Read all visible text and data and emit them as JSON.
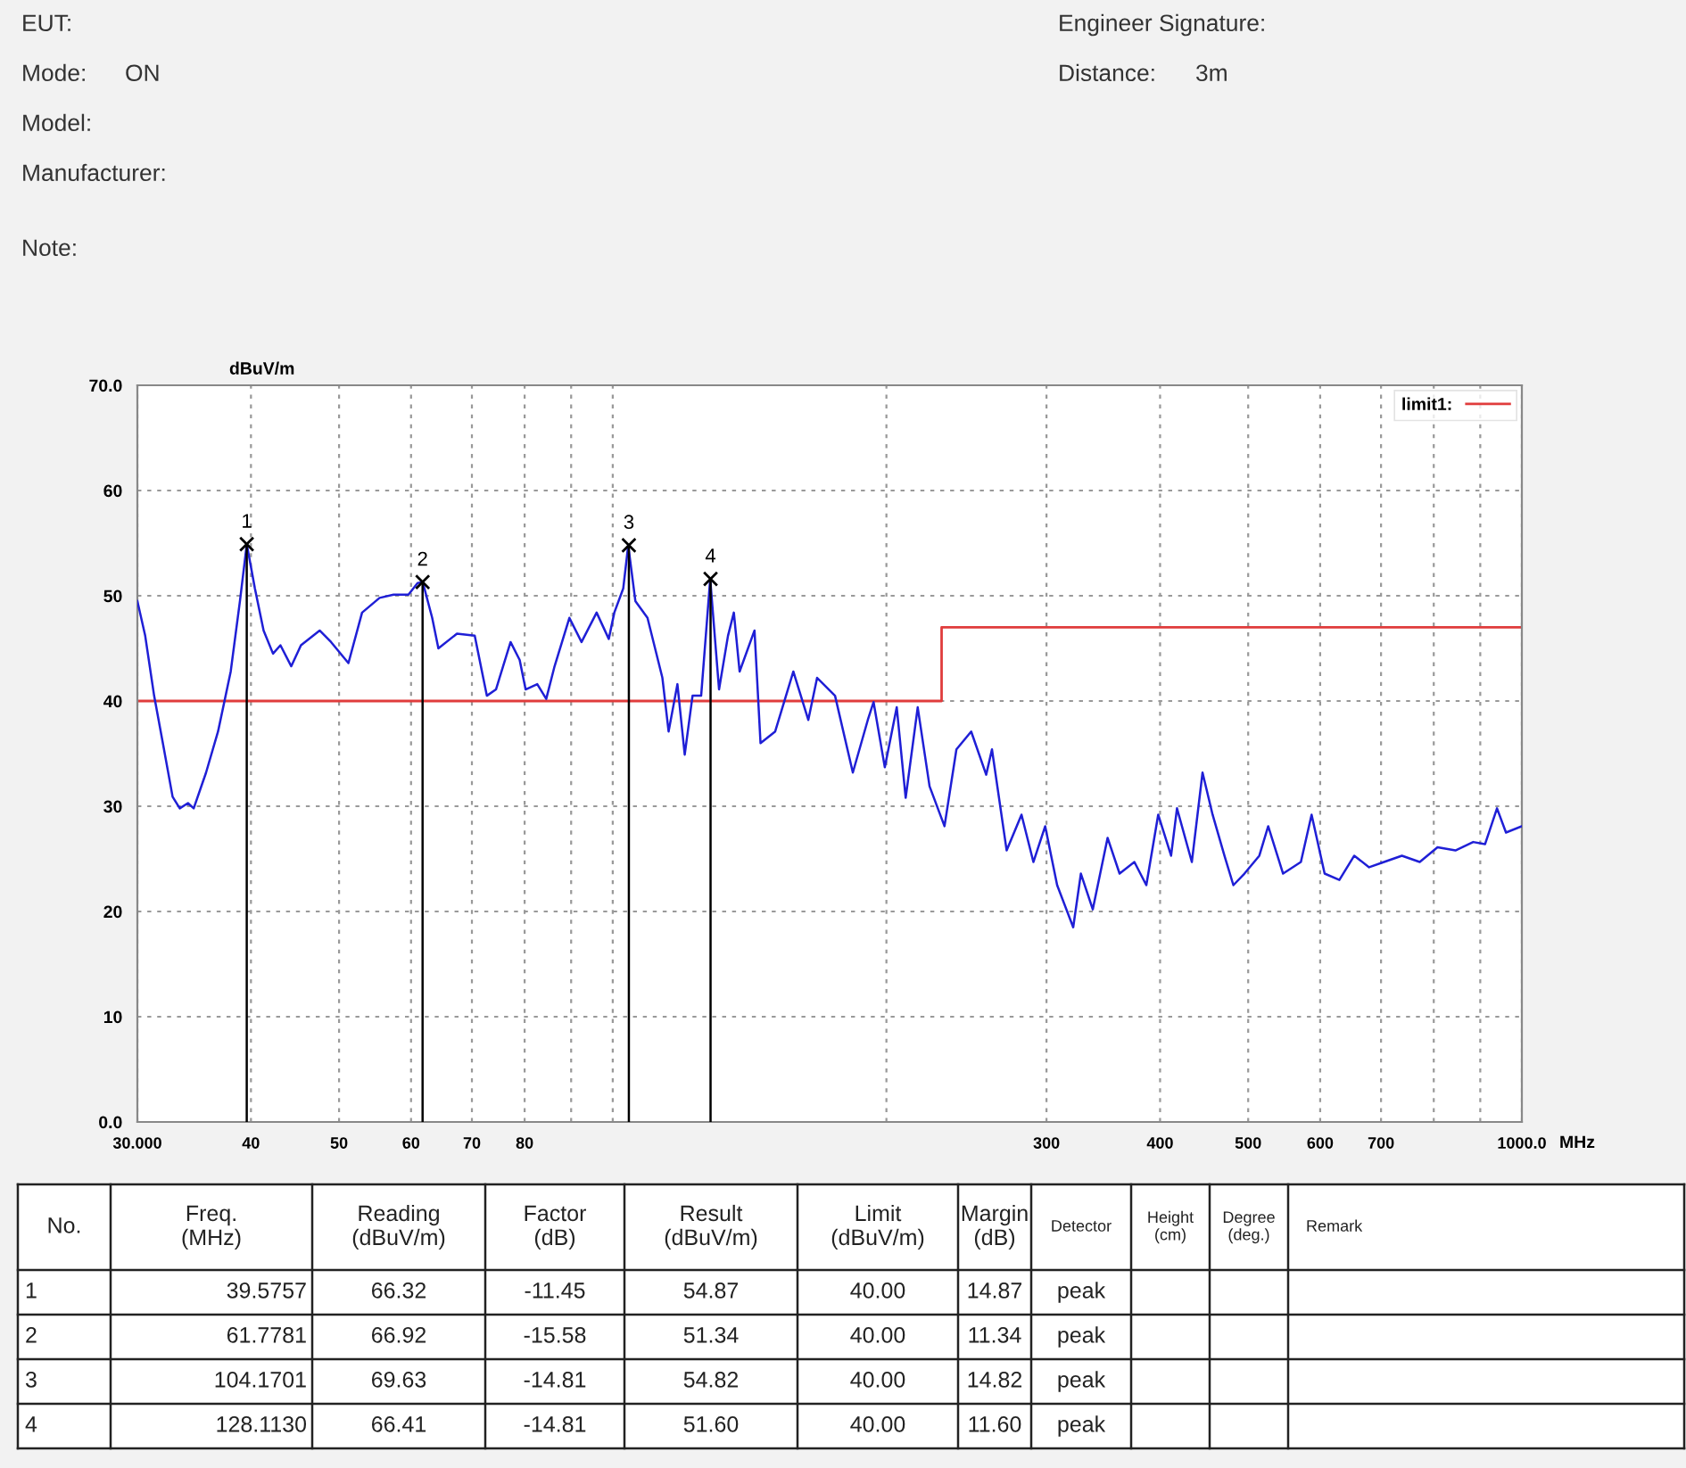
{
  "chart_data": {
    "type": "line",
    "xlabel": "MHz",
    "ylabel": "dBuV/m",
    "log": "x",
    "xlim": [
      30,
      1000
    ],
    "ylim": [
      0,
      70
    ],
    "xticks": [
      {
        "value": 30,
        "label": "30.000"
      },
      40,
      50,
      60,
      70,
      80,
      {
        "value": 90,
        "label": null
      },
      {
        "value": 100,
        "label": null
      },
      {
        "value": 200,
        "label": null
      },
      300,
      400,
      500,
      600,
      700,
      {
        "value": 800,
        "label": null
      },
      {
        "value": 900,
        "label": null
      },
      {
        "value": 1000,
        "label": "1000.0"
      }
    ],
    "yticks": [
      {
        "value": 0,
        "label": "0.0"
      },
      10,
      20,
      30,
      40,
      50,
      60,
      {
        "value": 70,
        "label": "70.0"
      }
    ],
    "grid": true,
    "legend": "top right",
    "series": [
      {
        "color": "#1f1fd6",
        "x": [
          30,
          30.6,
          31.3,
          32.0,
          32.8,
          33.4,
          34.1,
          34.6,
          35.7,
          36.8,
          38.0,
          38.9,
          39.58,
          40.4,
          41.3,
          42.3,
          43.1,
          44.3,
          45.4,
          47.6,
          49.0,
          51.2,
          53.0,
          55.4,
          57.4,
          59.6,
          61.0,
          61.8,
          63.3,
          64.3,
          67.4,
          70.5,
          72.7,
          74.4,
          77.2,
          79.0,
          80.2,
          82.6,
          84.5,
          86.3,
          89.6,
          92.4,
          96.0,
          99.0,
          100.4,
          102.7,
          104.0,
          105.9,
          109.2,
          113.4,
          115.2,
          117.8,
          120.0,
          122.4,
          125.1,
          128.0,
          130.9,
          133.9,
          135.9,
          137.9,
          143.2,
          145.4,
          150.9,
          158.0,
          164.1,
          167.8,
          175.6,
          183.7,
          190.8,
          193.6,
          199.2,
          205.3,
          210.0,
          216.5,
          223.1,
          231.7,
          238.8,
          247.9,
          257.5,
          261.3,
          271.2,
          281.6,
          290.2,
          299.0,
          308.2,
          321.0,
          327.3,
          337.3,
          350.2,
          361.0,
          374.8,
          386.3,
          398.1,
          411.3,
          417.5,
          433.5,
          445.4,
          456.9,
          470.8,
          481.6,
          495.3,
          514.3,
          526.0,
          546.2,
          571.4,
          587.1,
          606.8,
          629.9,
          654.1,
          679.2,
          705.3,
          738.0,
          772.1,
          807.7,
          845.1,
          884.0,
          911.1,
          939.0,
          960.6,
          1000
        ],
        "values": [
          49.5,
          46.2,
          40.5,
          36.0,
          30.9,
          29.8,
          30.3,
          29.8,
          33.2,
          37.1,
          42.8,
          49.5,
          54.9,
          50.7,
          46.7,
          44.5,
          45.3,
          43.3,
          45.3,
          46.7,
          45.6,
          43.6,
          48.4,
          49.8,
          50.1,
          50.1,
          51.2,
          51.3,
          47.9,
          45.0,
          46.4,
          46.2,
          40.5,
          41.1,
          45.6,
          43.9,
          41.1,
          41.6,
          40.2,
          43.3,
          47.9,
          45.6,
          48.4,
          45.9,
          48.4,
          50.7,
          54.8,
          49.5,
          47.9,
          42.2,
          37.1,
          41.6,
          34.9,
          40.5,
          40.5,
          51.6,
          41.1,
          46.2,
          48.4,
          42.8,
          46.7,
          36.0,
          37.1,
          42.8,
          38.2,
          42.2,
          40.5,
          33.2,
          38.2,
          39.9,
          33.7,
          39.4,
          30.8,
          39.4,
          31.9,
          28.1,
          35.4,
          37.1,
          33.0,
          35.4,
          25.8,
          29.2,
          24.7,
          28.1,
          22.5,
          18.5,
          23.6,
          20.2,
          27.0,
          23.6,
          24.7,
          22.5,
          29.2,
          25.3,
          29.8,
          24.7,
          33.2,
          29.2,
          25.3,
          22.5,
          23.6,
          25.3,
          28.1,
          23.6,
          24.7,
          29.2,
          23.6,
          23.0,
          25.3,
          24.2,
          24.7,
          25.3,
          24.7,
          26.1,
          25.8,
          26.6,
          26.4,
          29.8,
          27.5,
          28.1
        ]
      },
      {
        "type": "step",
        "name": "limit1:",
        "color": "#e03c3c",
        "x": [
          30,
          230,
          1000
        ],
        "values": [
          40,
          47,
          47
        ]
      },
      {
        "type": "lollipop",
        "color": "#000000",
        "marker": "cross",
        "x": [
          39.5757,
          61.7781,
          104.1701,
          128.113
        ],
        "values": [
          54.9,
          51.3,
          54.8,
          51.6
        ]
      }
    ],
    "annotations": [
      {
        "text": "1",
        "x": 39.5757,
        "y": 54.9
      },
      {
        "text": "2",
        "x": 61.7781,
        "y": 51.3
      },
      {
        "text": "3",
        "x": 104.1701,
        "y": 54.8
      },
      {
        "text": "4",
        "x": 128.113,
        "y": 51.6
      },
      "EUT:",
      "Mode:",
      "ON",
      "Model:",
      "Manufacturer:",
      "Engineer Signature:",
      "Distance:",
      "3m",
      "Note:",
      "No.",
      "Freq.\n(MHz)",
      "Reading\n(dBuV/m)",
      "Factor\n(dB)",
      "Result\n(dBuV/m)",
      "Limit\n(dBuV/m)",
      "Margin\n(dB)",
      "Detector",
      "Height\n(cm)",
      "Degree\n(deg.)",
      "Remark",
      "1",
      "39.5757",
      "66.32",
      "-11.45",
      "54.87",
      "40.00",
      "14.87",
      "peak",
      "2",
      "61.7781",
      "66.92",
      "-15.58",
      "51.34",
      "40.00",
      "11.34",
      "peak",
      "3",
      "104.1701",
      "69.63",
      "-14.81",
      "54.82",
      "40.00",
      "14.82",
      "peak",
      "4",
      "128.1130",
      "66.41",
      "-14.81",
      "51.60",
      "40.00",
      "11.60",
      "peak"
    ]
  }
}
